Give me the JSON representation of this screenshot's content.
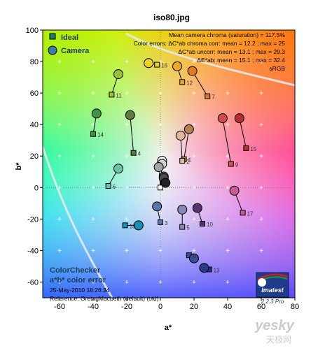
{
  "chart_data": {
    "type": "scatter",
    "title": "iso80.jpg",
    "xlabel": "a*",
    "ylabel": "b*",
    "xlim": [
      -70,
      80
    ],
    "ylim": [
      -70,
      100
    ],
    "x_ticks": [
      -60,
      -40,
      -20,
      0,
      20,
      40,
      60,
      80
    ],
    "y_ticks": [
      -60,
      -40,
      -20,
      0,
      20,
      40,
      60,
      80,
      100
    ],
    "x_tick_labels": [
      "-60",
      "-40",
      "-20",
      "0",
      "20",
      "40",
      "60",
      "80"
    ],
    "y_tick_labels": [
      "-60",
      "-40",
      "-20",
      "0",
      "20",
      "40",
      "60",
      "80",
      "100"
    ],
    "grid": "dotted center axes, plus markers",
    "legend": {
      "placement": "top-left",
      "entries": [
        {
          "label": "Ideal",
          "marker": "square",
          "color": "#1e7a6a"
        },
        {
          "label": "Camera",
          "marker": "circle",
          "color": "#3b7ea8"
        }
      ]
    },
    "stats_text": {
      "line1": "Mean camera chroma (saturation) = 117.5%",
      "line2": "Color errors:  ΔC*ab chroma corr:  mean = 12.2 ;  max = 25",
      "line3": "ΔC*ab uncorr:  mean = 13.1 ;  max = 29.3",
      "line4": "ΔE*ab:  mean = 15.1 ;  max = 32.4",
      "line5": "sRGB"
    },
    "info_text": {
      "title1": "ColorChecker",
      "title2": "a*b* color error",
      "date": "25-May-2010 18:26:34",
      "reference": "Reference: GretagMacbeth (default) (old)"
    },
    "logo": {
      "name": "Imatest",
      "version": "2.2.3  Pro"
    },
    "points": [
      {
        "id": "1",
        "ideal": [
          14,
          18
        ],
        "camera": [
          17,
          37
        ],
        "color": "#b5804f"
      },
      {
        "id": "2",
        "ideal": [
          13,
          17
        ],
        "camera": [
          12,
          33
        ],
        "color": "#e2b89b"
      },
      {
        "id": "3",
        "ideal": [
          0,
          -22
        ],
        "camera": [
          -2,
          -12
        ],
        "color": "#5a78a2"
      },
      {
        "id": "4",
        "ideal": [
          -16,
          22
        ],
        "camera": [
          -18,
          46
        ],
        "color": "#5f7a3c"
      },
      {
        "id": "5",
        "ideal": [
          13,
          -25
        ],
        "camera": [
          13,
          -14
        ],
        "color": "#8888b4"
      },
      {
        "id": "6",
        "ideal": [
          -31,
          1
        ],
        "camera": [
          -25,
          12
        ],
        "color": "#69c3a7"
      },
      {
        "id": "7",
        "ideal": [
          28,
          58
        ],
        "camera": [
          19,
          74
        ],
        "color": "#e07a1f"
      },
      {
        "id": "8",
        "ideal": [
          17,
          -43
        ],
        "camera": [
          20,
          -45
        ],
        "color": "#3b4c9a"
      },
      {
        "id": "9",
        "ideal": [
          42,
          15
        ],
        "camera": [
          37,
          44
        ],
        "color": "#d84a4c"
      },
      {
        "id": "10",
        "ideal": [
          25,
          -23
        ],
        "camera": [
          22,
          -13
        ],
        "color": "#5b3170"
      },
      {
        "id": "11",
        "ideal": [
          -29,
          59
        ],
        "camera": [
          -25,
          72
        ],
        "color": "#99c236"
      },
      {
        "id": "12",
        "ideal": [
          13,
          67
        ],
        "camera": [
          10,
          77
        ],
        "color": "#eaa824"
      },
      {
        "id": "13",
        "ideal": [
          29,
          -52
        ],
        "camera": [
          26,
          -51
        ],
        "color": "#293a8c"
      },
      {
        "id": "14",
        "ideal": [
          -40,
          34
        ],
        "camera": [
          -38,
          47
        ],
        "color": "#3f9445"
      },
      {
        "id": "15",
        "ideal": [
          51,
          25
        ],
        "camera": [
          47,
          44
        ],
        "color": "#b72d33"
      },
      {
        "id": "16",
        "ideal": [
          -2,
          78
        ],
        "camera": [
          -7,
          79
        ],
        "color": "#ecd12a"
      },
      {
        "id": "17",
        "ideal": [
          49,
          -16
        ],
        "camera": [
          44,
          -2
        ],
        "color": "#c85a96"
      },
      {
        "id": "18",
        "ideal": [
          -21,
          -24
        ],
        "camera": [
          -13,
          -24
        ],
        "color": "#1a8fb4"
      }
    ],
    "neutrals": [
      {
        "ideal": [
          0,
          0
        ],
        "camera": [
          1,
          17
        ],
        "color": "#f3f3f3"
      },
      {
        "ideal": [
          0,
          0
        ],
        "camera": [
          1,
          15
        ],
        "color": "#cfcfcf"
      },
      {
        "ideal": [
          0,
          0
        ],
        "camera": [
          -1,
          13
        ],
        "color": "#a3a3a3"
      },
      {
        "ideal": [
          0,
          0
        ],
        "camera": [
          2,
          7
        ],
        "color": "#777777"
      },
      {
        "ideal": [
          0,
          0
        ],
        "camera": [
          2,
          6
        ],
        "color": "#4d4d4d"
      },
      {
        "ideal": [
          0,
          0
        ],
        "camera": [
          3,
          3
        ],
        "color": "#222222"
      }
    ]
  },
  "watermark": {
    "text1": "yesky",
    "text2": "天极网"
  }
}
